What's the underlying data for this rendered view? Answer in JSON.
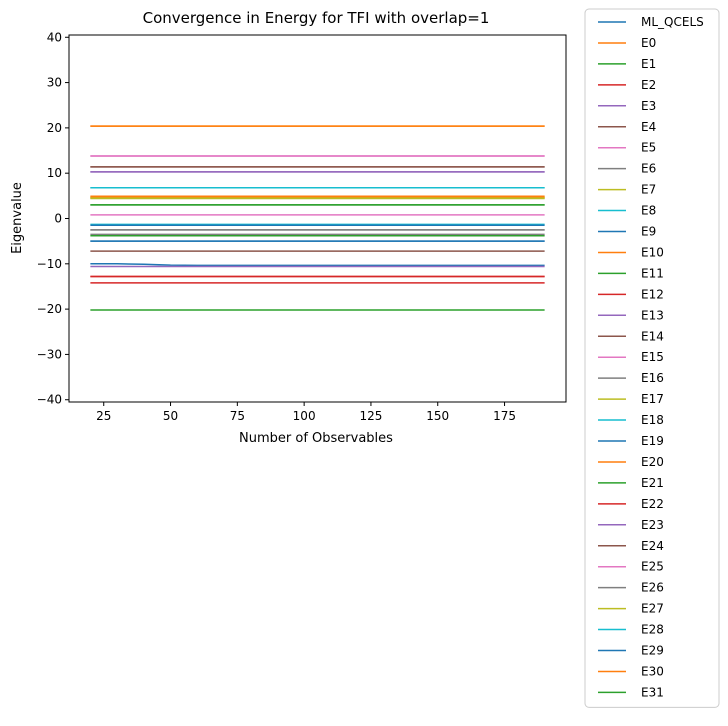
{
  "chart_data": {
    "type": "line",
    "title": "Convergence in Energy for TFI with overlap=1",
    "xlabel": "Number of Observables",
    "ylabel": "Eigenvalue",
    "xlim": [
      12,
      198
    ],
    "ylim": [
      -40.5,
      40.5
    ],
    "xticks": [
      25,
      50,
      75,
      100,
      125,
      150,
      175
    ],
    "yticks": [
      -40,
      -30,
      -20,
      -10,
      0,
      10,
      20,
      30,
      40
    ],
    "grid": false,
    "legend_position": "outside-right",
    "x": [
      20,
      190
    ],
    "series": [
      {
        "name": "ML_QCELS",
        "color": "#1f77b4",
        "x": [
          20,
          30,
          40,
          50,
          60,
          80,
          100,
          130,
          160,
          190
        ],
        "values": [
          -10.0,
          -10.0,
          -10.1,
          -10.3,
          -10.35,
          -10.35,
          -10.35,
          -10.35,
          -10.35,
          -10.35
        ]
      },
      {
        "name": "E0",
        "color": "#ff7f0e",
        "values": [
          20.4,
          20.4
        ]
      },
      {
        "name": "E1",
        "color": "#2ca02c",
        "values": [
          -20.2,
          -20.2
        ]
      },
      {
        "name": "E2",
        "color": "#d62728",
        "values": [
          -14.2,
          -14.2
        ]
      },
      {
        "name": "E3",
        "color": "#9467bd",
        "values": [
          10.3,
          10.3
        ]
      },
      {
        "name": "E4",
        "color": "#8c564b",
        "values": [
          11.4,
          11.4
        ]
      },
      {
        "name": "E5",
        "color": "#e377c2",
        "values": [
          13.8,
          13.8
        ]
      },
      {
        "name": "E6",
        "color": "#7f7f7f",
        "values": [
          -2.5,
          -2.5
        ]
      },
      {
        "name": "E7",
        "color": "#bcbd22",
        "values": [
          4.6,
          4.6
        ]
      },
      {
        "name": "E8",
        "color": "#17becf",
        "values": [
          6.8,
          6.8
        ]
      },
      {
        "name": "E9",
        "color": "#1f77b4",
        "values": [
          -5.0,
          -5.0
        ]
      },
      {
        "name": "E10",
        "color": "#ff7f0e",
        "values": [
          4.9,
          4.9
        ]
      },
      {
        "name": "E11",
        "color": "#2ca02c",
        "values": [
          3.0,
          3.0
        ]
      },
      {
        "name": "E12",
        "color": "#d62728",
        "values": [
          -12.8,
          -12.8
        ]
      },
      {
        "name": "E13",
        "color": "#9467bd",
        "values": [
          -10.6,
          -10.6
        ]
      },
      {
        "name": "E14",
        "color": "#8c564b",
        "values": [
          -7.2,
          -7.2
        ]
      },
      {
        "name": "E15",
        "color": "#e377c2",
        "values": [
          0.8,
          0.8
        ]
      },
      {
        "name": "E16",
        "color": "#7f7f7f",
        "values": [
          -3.5,
          -3.5
        ]
      },
      {
        "name": "E17",
        "color": "#bcbd22",
        "values": [
          4.4,
          4.4
        ]
      },
      {
        "name": "E18",
        "color": "#17becf",
        "values": [
          -1.3,
          -1.3
        ]
      },
      {
        "name": "E19",
        "color": "#1f77b4",
        "values": [
          -1.5,
          -1.5
        ]
      },
      {
        "name": "E20",
        "color": "#ff7f0e",
        "values": [
          4.7,
          4.7
        ]
      },
      {
        "name": "E21",
        "color": "#2ca02c",
        "values": [
          -3.8,
          -3.8
        ]
      },
      {
        "name": "E22",
        "color": "#d62728",
        "values": [
          -12.8,
          -12.8
        ]
      },
      {
        "name": "E23",
        "color": "#9467bd",
        "values": [
          10.3,
          10.3
        ]
      },
      {
        "name": "E24",
        "color": "#8c564b",
        "values": [
          11.4,
          11.4
        ]
      },
      {
        "name": "E25",
        "color": "#e377c2",
        "values": [
          13.8,
          13.8
        ]
      },
      {
        "name": "E26",
        "color": "#7f7f7f",
        "values": [
          -2.5,
          -2.5
        ]
      },
      {
        "name": "E27",
        "color": "#bcbd22",
        "values": [
          4.5,
          4.5
        ]
      },
      {
        "name": "E28",
        "color": "#17becf",
        "values": [
          6.8,
          6.8
        ]
      },
      {
        "name": "E29",
        "color": "#1f77b4",
        "values": [
          -5.0,
          -5.0
        ]
      },
      {
        "name": "E30",
        "color": "#ff7f0e",
        "values": [
          20.4,
          20.4
        ]
      },
      {
        "name": "E31",
        "color": "#2ca02c",
        "values": [
          3.0,
          3.0
        ]
      }
    ]
  }
}
